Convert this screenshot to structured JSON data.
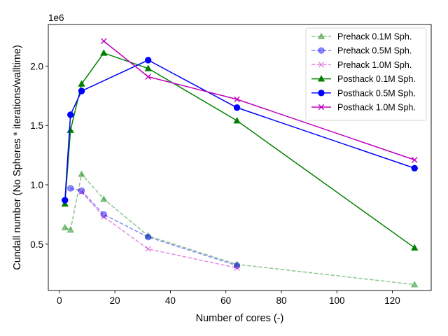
{
  "chart_data": {
    "type": "line",
    "xlabel": "Number of cores (-)",
    "ylabel": "Cundall number (No Spheres * iterations/walltime)",
    "y_offset_label": "1e6",
    "xlim": [
      -4,
      134
    ],
    "ylim": [
      0.11,
      2.35
    ],
    "xticks": [
      0,
      20,
      40,
      60,
      80,
      100,
      120
    ],
    "yticks": [
      0.5,
      1.0,
      1.5,
      2.0
    ],
    "xtick_labels": [
      "0",
      "20",
      "40",
      "60",
      "80",
      "100",
      "120"
    ],
    "ytick_labels": [
      "0.5",
      "1.0",
      "1.5",
      "2.0"
    ],
    "y_scale_note": "values in units of 1e6",
    "grid": false,
    "legend_position": "top-right",
    "series": [
      {
        "name": "Prehack 0.1M Sph.",
        "color": "#008000",
        "marker": "triangle",
        "dashed": true,
        "faded": true,
        "x": [
          2,
          4,
          8,
          16,
          32,
          64,
          128
        ],
        "y": [
          0.64,
          0.62,
          1.09,
          0.88,
          0.57,
          0.33,
          0.16
        ]
      },
      {
        "name": "Prehack 0.5M Sph.",
        "color": "#0000ff",
        "marker": "circle",
        "dashed": true,
        "faded": true,
        "x": [
          4,
          8,
          16,
          32,
          64
        ],
        "y": [
          0.97,
          0.95,
          0.75,
          0.56,
          0.32
        ]
      },
      {
        "name": "Prehack 1.0M Sph.",
        "color": "#bf00bf",
        "marker": "x",
        "dashed": true,
        "faded": true,
        "x": [
          8,
          16,
          32,
          64
        ],
        "y": [
          0.94,
          0.73,
          0.46,
          0.3
        ]
      },
      {
        "name": "Posthack 0.1M Sph.",
        "color": "#008000",
        "marker": "triangle",
        "dashed": false,
        "faded": false,
        "x": [
          2,
          4,
          8,
          16,
          32,
          64,
          128
        ],
        "y": [
          0.84,
          1.46,
          1.85,
          2.11,
          1.98,
          1.54,
          0.47
        ]
      },
      {
        "name": "Posthack 0.5M Sph.",
        "color": "#0000ff",
        "marker": "circle",
        "dashed": false,
        "faded": false,
        "x": [
          2,
          4,
          8,
          32,
          64,
          128
        ],
        "y": [
          0.87,
          1.59,
          1.79,
          2.05,
          1.65,
          1.14
        ]
      },
      {
        "name": "Posthack 1.0M Sph.",
        "color": "#bf00bf",
        "marker": "x",
        "dashed": false,
        "faded": false,
        "x": [
          16,
          32,
          64,
          128
        ],
        "y": [
          2.21,
          1.91,
          1.72,
          1.21
        ]
      }
    ]
  }
}
